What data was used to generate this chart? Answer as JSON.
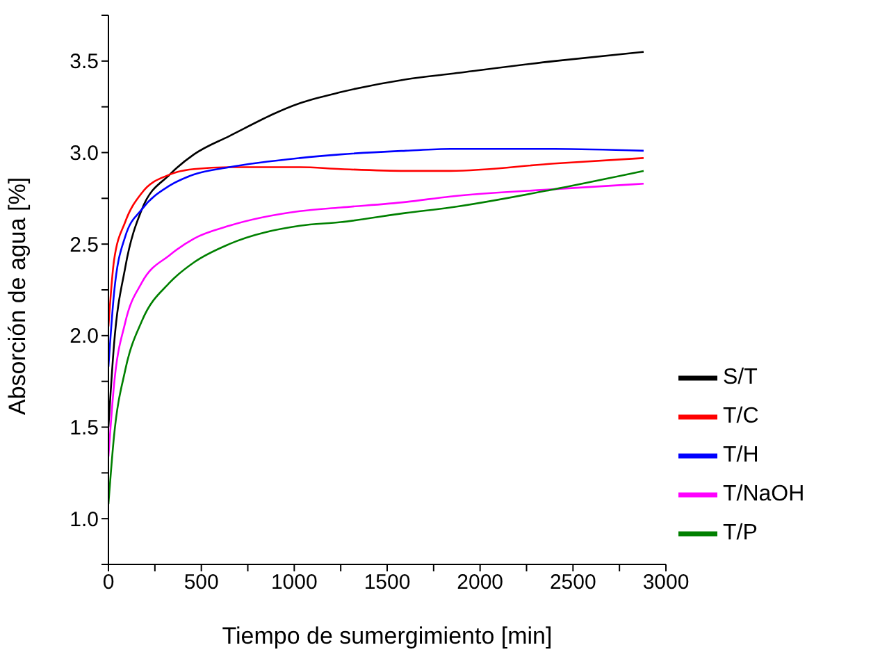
{
  "chart_data": {
    "type": "line",
    "xlabel": "Tiempo de sumergimiento [min]",
    "ylabel": "Absorción de agua [%]",
    "x": [
      0,
      30,
      90,
      180,
      330,
      460,
      650,
      1030,
      1250,
      1600,
      1840,
      2400,
      2880
    ],
    "series": [
      {
        "name": "S/T",
        "color": "#000000",
        "values": [
          1.5,
          1.95,
          2.37,
          2.69,
          2.88,
          2.99,
          3.09,
          3.27,
          3.33,
          3.4,
          3.43,
          3.5,
          3.55
        ]
      },
      {
        "name": "T/C",
        "color": "#ff0000",
        "values": [
          2.05,
          2.41,
          2.62,
          2.78,
          2.88,
          2.91,
          2.92,
          2.92,
          2.91,
          2.9,
          2.9,
          2.94,
          2.97
        ]
      },
      {
        "name": "T/H",
        "color": "#0000ff",
        "values": [
          1.83,
          2.23,
          2.54,
          2.69,
          2.82,
          2.88,
          2.92,
          2.97,
          2.99,
          3.01,
          3.02,
          3.02,
          3.01
        ]
      },
      {
        "name": "T/NaOH",
        "color": "#ff00ff",
        "values": [
          1.34,
          1.73,
          2.07,
          2.29,
          2.44,
          2.53,
          2.6,
          2.68,
          2.7,
          2.73,
          2.76,
          2.8,
          2.83
        ]
      },
      {
        "name": "T/P",
        "color": "#008000",
        "values": [
          1.08,
          1.45,
          1.81,
          2.08,
          2.29,
          2.4,
          2.5,
          2.6,
          2.62,
          2.67,
          2.7,
          2.8,
          2.9
        ]
      }
    ],
    "xlim": [
      0,
      3000
    ],
    "xticks": [
      0,
      {
        "value": 250,
        "label": null
      },
      500,
      {
        "value": 750,
        "label": null
      },
      1000,
      {
        "value": 1250,
        "label": null
      },
      1500,
      {
        "value": 1750,
        "label": null
      },
      2000,
      {
        "value": 2250,
        "label": null
      },
      2500,
      {
        "value": 2750,
        "label": null
      },
      3000
    ],
    "ylim": [
      0.75,
      3.75
    ],
    "yticks": [
      {
        "value": 0.75,
        "label": null
      },
      {
        "value": 1,
        "label": "1.0"
      },
      {
        "value": 1.25,
        "label": null
      },
      {
        "value": 1.5,
        "label": "1.5"
      },
      {
        "value": 1.75,
        "label": null
      },
      {
        "value": 2,
        "label": "2.0"
      },
      {
        "value": 2.25,
        "label": null
      },
      {
        "value": 2.5,
        "label": "2.5"
      },
      {
        "value": 2.75,
        "label": null
      },
      {
        "value": 3,
        "label": "3.0"
      },
      {
        "value": 3.25,
        "label": null
      },
      {
        "value": 3.5,
        "label": "3.5"
      },
      {
        "value": 3.75,
        "label": null
      }
    ],
    "grid": false,
    "legend": "bottom right",
    "marker": "none",
    "line_style": "solid"
  }
}
